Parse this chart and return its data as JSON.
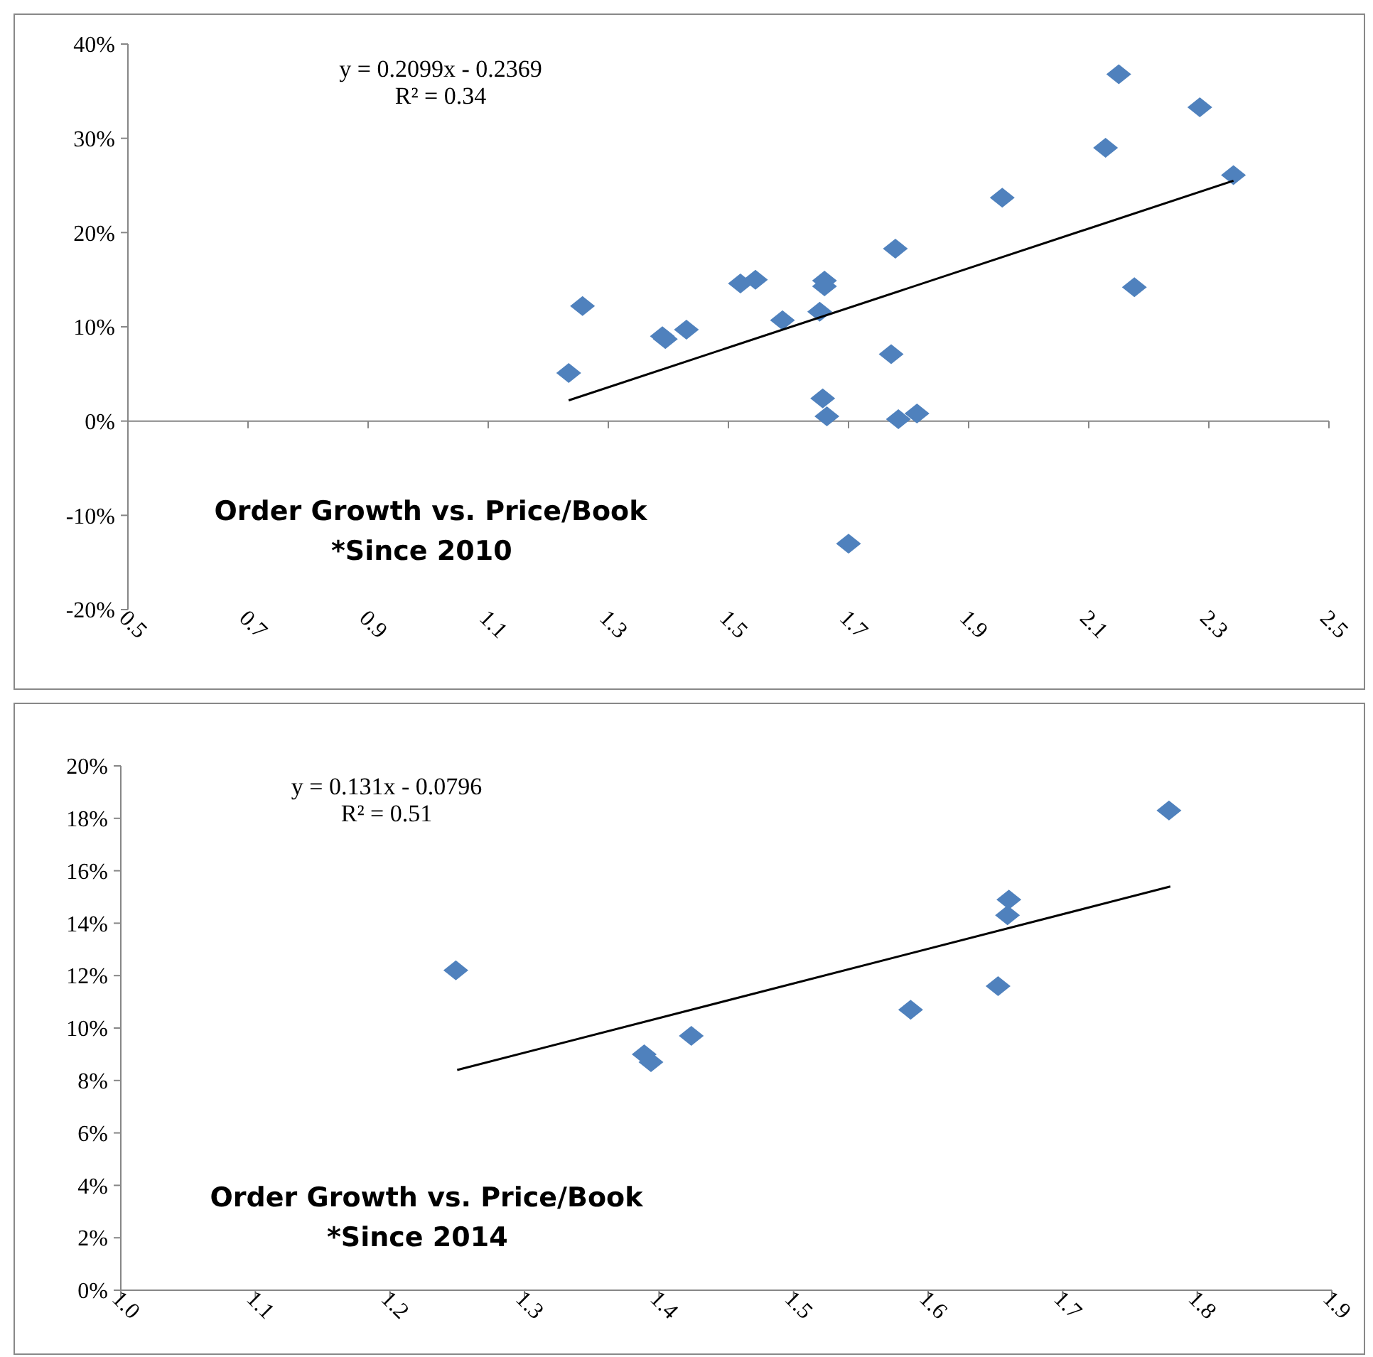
{
  "chart_data": [
    {
      "type": "scatter",
      "title": "Order Growth vs. Price/Book",
      "subtitle": "*Since 2010",
      "annotations": [
        "y = 0.2099x - 0.2369",
        "R² = 0.34"
      ],
      "xlim": [
        0.5,
        2.5
      ],
      "xticks": [
        0.5,
        0.7,
        0.9,
        1.1,
        1.3,
        1.5,
        1.7,
        1.9,
        2.1,
        2.3,
        2.5
      ],
      "ylim": [
        -0.2,
        0.4
      ],
      "yticks": [
        {
          "value": -0.2,
          "label": "-20%"
        },
        {
          "value": -0.1,
          "label": "-10%"
        },
        {
          "value": 0,
          "label": "0%"
        },
        {
          "value": 0.1,
          "label": "10%"
        },
        {
          "value": 0.2,
          "label": "20%"
        },
        {
          "value": 0.3,
          "label": "30%"
        },
        {
          "value": 0.4,
          "label": "40%"
        }
      ],
      "series": [
        {
          "color": "#4f81bd",
          "marker": "diamond",
          "x": [
            1.234,
            1.257,
            1.39,
            1.395,
            1.43,
            1.52,
            1.545,
            1.59,
            1.652,
            1.66,
            1.66,
            1.657,
            1.664,
            1.771,
            1.783,
            1.814,
            1.7,
            1.778,
            1.956,
            2.128,
            2.15,
            2.176,
            2.285,
            2.341
          ],
          "values": [
            0.051,
            0.122,
            0.09,
            0.087,
            0.097,
            0.146,
            0.15,
            0.107,
            0.116,
            0.143,
            0.149,
            0.024,
            0.005,
            0.071,
            0.002,
            0.008,
            -0.13,
            0.183,
            0.237,
            0.29,
            0.368,
            0.142,
            0.333,
            0.261
          ]
        },
        {
          "type": "line",
          "color": "#000000",
          "marker": "none",
          "x": [
            1.234,
            2.341
          ],
          "values": [
            0.022,
            0.255
          ]
        }
      ]
    },
    {
      "type": "scatter",
      "title": "Order Growth vs. Price/Book",
      "subtitle": "*Since 2014",
      "annotations": [
        "y = 0.131x - 0.0796",
        "R² = 0.51"
      ],
      "xlim": [
        1.0,
        1.9
      ],
      "xticks": [
        {
          "value": 1.0,
          "label": "1.0"
        },
        1.1,
        1.2,
        1.3,
        1.4,
        1.5,
        1.6,
        1.7,
        1.8,
        1.9
      ],
      "ylim": [
        0,
        0.2
      ],
      "yticks": [
        {
          "value": 0,
          "label": "0%"
        },
        {
          "value": 0.02,
          "label": "2%"
        },
        {
          "value": 0.04,
          "label": "4%"
        },
        {
          "value": 0.06,
          "label": "6%"
        },
        {
          "value": 0.08,
          "label": "8%"
        },
        {
          "value": 0.1,
          "label": "10%"
        },
        {
          "value": 0.12,
          "label": "12%"
        },
        {
          "value": 0.14,
          "label": "14%"
        },
        {
          "value": 0.16,
          "label": "16%"
        },
        {
          "value": 0.18,
          "label": "18%"
        },
        {
          "value": 0.2,
          "label": "20%"
        }
      ],
      "series": [
        {
          "color": "#4f81bd",
          "marker": "diamond",
          "x": [
            1.249,
            1.389,
            1.394,
            1.424,
            1.587,
            1.652,
            1.659,
            1.66,
            1.779
          ],
          "values": [
            0.122,
            0.09,
            0.087,
            0.097,
            0.107,
            0.116,
            0.143,
            0.149,
            0.183
          ]
        },
        {
          "type": "line",
          "color": "#000000",
          "marker": "none",
          "x": [
            1.25,
            1.78
          ],
          "values": [
            0.084,
            0.154
          ]
        }
      ]
    }
  ]
}
